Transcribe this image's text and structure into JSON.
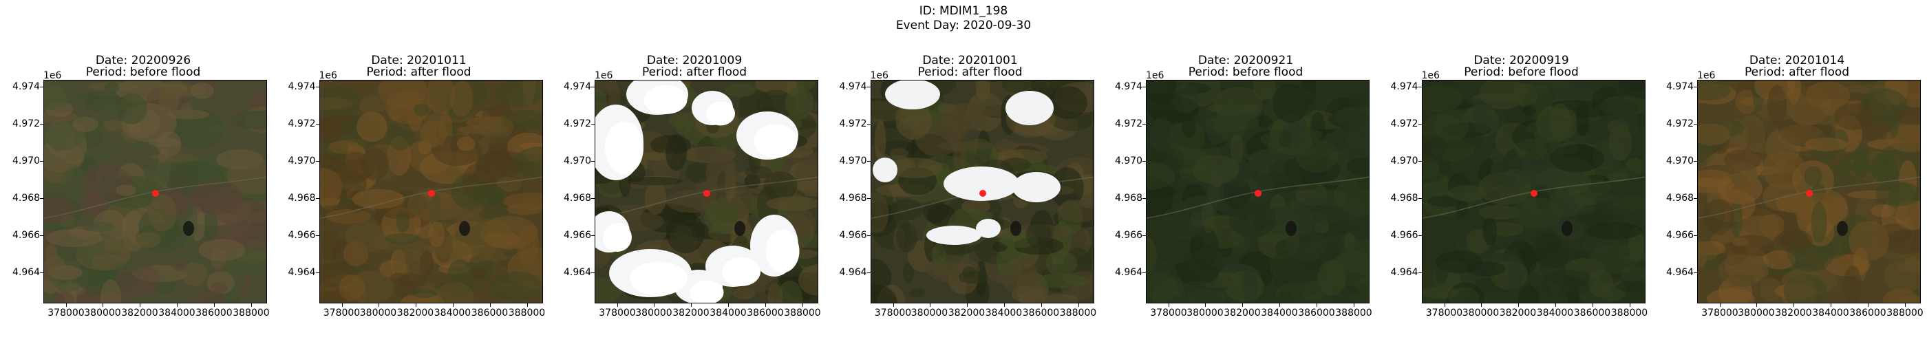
{
  "header": {
    "id_line": "ID: MDIM1_198",
    "event_line": "Event Day: 2020-09-30"
  },
  "axes": {
    "y_exponent": "1e6",
    "y_ticks": [
      "4.974",
      "4.972",
      "4.970",
      "4.968",
      "4.966",
      "4.964"
    ],
    "x_ticks": [
      "378000",
      "380000",
      "382000",
      "384000",
      "386000",
      "388000"
    ]
  },
  "marker_color": "#ff2020",
  "panels": [
    {
      "date": "Date: 20200926",
      "period": "Period: before flood",
      "palette": "mixed",
      "clouds": 0
    },
    {
      "date": "Date: 20201011",
      "period": "Period: after flood",
      "palette": "autumn",
      "clouds": 0
    },
    {
      "date": "Date: 20201009",
      "period": "Period: after flood",
      "palette": "dark",
      "clouds": 2
    },
    {
      "date": "Date: 20201001",
      "period": "Period: after flood",
      "palette": "dark",
      "clouds": 1
    },
    {
      "date": "Date: 20200921",
      "period": "Period: before flood",
      "palette": "green",
      "clouds": 0
    },
    {
      "date": "Date: 20200919",
      "period": "Period: before flood",
      "palette": "green",
      "clouds": 0
    },
    {
      "date": "Date: 20201014",
      "period": "Period: after flood",
      "palette": "autumn",
      "clouds": 0
    }
  ]
}
